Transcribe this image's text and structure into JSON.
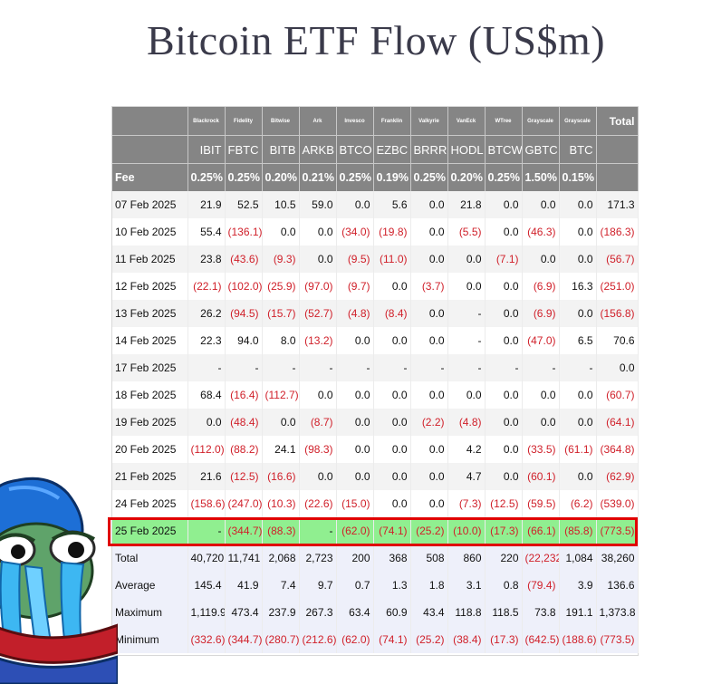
{
  "title": "Bitcoin ETF Flow (US$m)",
  "issuers": [
    "Blackrock",
    "Fidelity",
    "Bitwise",
    "Ark",
    "Invesco",
    "Franklin",
    "Valkyrie",
    "VanEck",
    "WTree",
    "Grayscale",
    "Grayscale"
  ],
  "total_label": "Total",
  "tickers": [
    "IBIT",
    "FBTC",
    "BITB",
    "ARKB",
    "BTCO",
    "EZBC",
    "BRRR",
    "HODL",
    "BTCW",
    "GBTC",
    "BTC"
  ],
  "fee_label": "Fee",
  "fees": [
    "0.25%",
    "0.25%",
    "0.20%",
    "0.21%",
    "0.25%",
    "0.19%",
    "0.25%",
    "0.20%",
    "0.25%",
    "1.50%",
    "0.15%"
  ],
  "rows": [
    {
      "date": "07 Feb 2025",
      "values": [
        "21.9",
        "52.5",
        "10.5",
        "59.0",
        "0.0",
        "5.6",
        "0.0",
        "21.8",
        "0.0",
        "0.0",
        "0.0",
        "171.3"
      ]
    },
    {
      "date": "10 Feb 2025",
      "values": [
        "55.4",
        "(136.1)",
        "0.0",
        "0.0",
        "(34.0)",
        "(19.8)",
        "0.0",
        "(5.5)",
        "0.0",
        "(46.3)",
        "0.0",
        "(186.3)"
      ]
    },
    {
      "date": "11 Feb 2025",
      "values": [
        "23.8",
        "(43.6)",
        "(9.3)",
        "0.0",
        "(9.5)",
        "(11.0)",
        "0.0",
        "0.0",
        "(7.1)",
        "0.0",
        "0.0",
        "(56.7)"
      ]
    },
    {
      "date": "12 Feb 2025",
      "values": [
        "(22.1)",
        "(102.0)",
        "(25.9)",
        "(97.0)",
        "(9.7)",
        "0.0",
        "(3.7)",
        "0.0",
        "0.0",
        "(6.9)",
        "16.3",
        "(251.0)"
      ]
    },
    {
      "date": "13 Feb 2025",
      "values": [
        "26.2",
        "(94.5)",
        "(15.7)",
        "(52.7)",
        "(4.8)",
        "(8.4)",
        "0.0",
        "-",
        "0.0",
        "(6.9)",
        "0.0",
        "(156.8)"
      ]
    },
    {
      "date": "14 Feb 2025",
      "values": [
        "22.3",
        "94.0",
        "8.0",
        "(13.2)",
        "0.0",
        "0.0",
        "0.0",
        "-",
        "0.0",
        "(47.0)",
        "6.5",
        "70.6"
      ]
    },
    {
      "date": "17 Feb 2025",
      "values": [
        "-",
        "-",
        "-",
        "-",
        "-",
        "-",
        "-",
        "-",
        "-",
        "-",
        "-",
        "0.0"
      ]
    },
    {
      "date": "18 Feb 2025",
      "values": [
        "68.4",
        "(16.4)",
        "(112.7)",
        "0.0",
        "0.0",
        "0.0",
        "0.0",
        "0.0",
        "0.0",
        "0.0",
        "0.0",
        "(60.7)"
      ]
    },
    {
      "date": "19 Feb 2025",
      "values": [
        "0.0",
        "(48.4)",
        "0.0",
        "(8.7)",
        "0.0",
        "0.0",
        "(2.2)",
        "(4.8)",
        "0.0",
        "0.0",
        "0.0",
        "(64.1)"
      ]
    },
    {
      "date": "20 Feb 2025",
      "values": [
        "(112.0)",
        "(88.2)",
        "24.1",
        "(98.3)",
        "0.0",
        "0.0",
        "0.0",
        "4.2",
        "0.0",
        "(33.5)",
        "(61.1)",
        "(364.8)"
      ]
    },
    {
      "date": "21 Feb 2025",
      "values": [
        "21.6",
        "(12.5)",
        "(16.6)",
        "0.0",
        "0.0",
        "0.0",
        "0.0",
        "4.7",
        "0.0",
        "(60.1)",
        "0.0",
        "(62.9)"
      ]
    },
    {
      "date": "24 Feb 2025",
      "values": [
        "(158.6)",
        "(247.0)",
        "(10.3)",
        "(22.6)",
        "(15.0)",
        "0.0",
        "0.0",
        "(7.3)",
        "(12.5)",
        "(59.5)",
        "(6.2)",
        "(539.0)"
      ]
    },
    {
      "date": "25 Feb 2025",
      "values": [
        "-",
        "(344.7)",
        "(88.3)",
        "-",
        "(62.0)",
        "(74.1)",
        "(25.2)",
        "(10.0)",
        "(17.3)",
        "(66.1)",
        "(85.8)",
        "(773.5)"
      ]
    }
  ],
  "stats": [
    {
      "label": "Total",
      "values": [
        "40,720",
        "11,741",
        "2,068",
        "2,723",
        "200",
        "368",
        "508",
        "860",
        "220",
        "(22,232)",
        "1,084",
        "38,260"
      ]
    },
    {
      "label": "Average",
      "values": [
        "145.4",
        "41.9",
        "7.4",
        "9.7",
        "0.7",
        "1.3",
        "1.8",
        "3.1",
        "0.8",
        "(79.4)",
        "3.9",
        "136.6"
      ]
    },
    {
      "label": "Maximum",
      "values": [
        "1,119.9",
        "473.4",
        "237.9",
        "267.3",
        "63.4",
        "60.9",
        "43.4",
        "118.8",
        "118.5",
        "73.8",
        "191.1",
        "1,373.8"
      ]
    },
    {
      "label": "Minimum",
      "values": [
        "(332.6)",
        "(344.7)",
        "(280.7)",
        "(212.6)",
        "(62.0)",
        "(74.1)",
        "(25.2)",
        "(38.4)",
        "(17.3)",
        "(642.5)",
        "(188.6)",
        "(773.5)"
      ]
    }
  ],
  "highlight_date": "25 Feb 2025",
  "colors": {
    "header_bg": "#858585",
    "negative": "#d0202a",
    "highlight_row": "#90ef90",
    "highlight_border": "#e00000"
  },
  "decoration": {
    "sticker": "crying-pepe-frog-icon"
  }
}
